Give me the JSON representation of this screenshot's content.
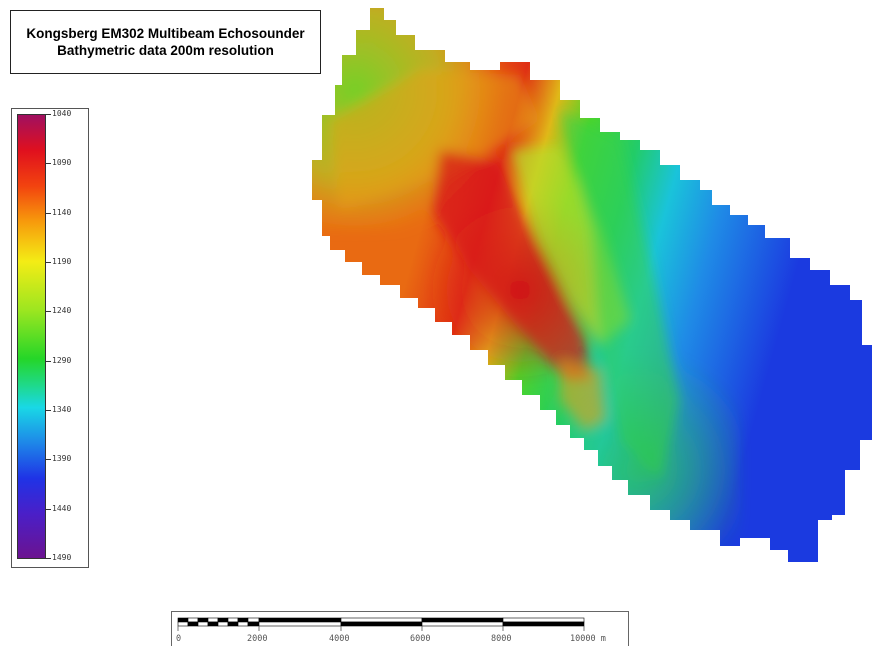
{
  "title": {
    "line1": "Kongsberg EM302 Multibeam Echosounder",
    "line2": "Bathymetric data 200m resolution"
  },
  "legend": {
    "ticks": [
      "1040",
      "1090",
      "1140",
      "1190",
      "1240",
      "1290",
      "1340",
      "1390",
      "1440",
      "1490"
    ],
    "min_value": 1040,
    "max_value": 1490
  },
  "scale_bar": {
    "labels": [
      "0",
      "2000",
      "4000",
      "6000",
      "8000",
      "10000 m"
    ],
    "max_value": 10000
  },
  "colors": {
    "shallow": "#a01060",
    "red": "#e0101e",
    "orange": "#f79a0c",
    "yellow": "#f4ec15",
    "green": "#25d628",
    "cyan": "#19d8e6",
    "blue": "#1f33e6",
    "deep": "#6b1390"
  }
}
